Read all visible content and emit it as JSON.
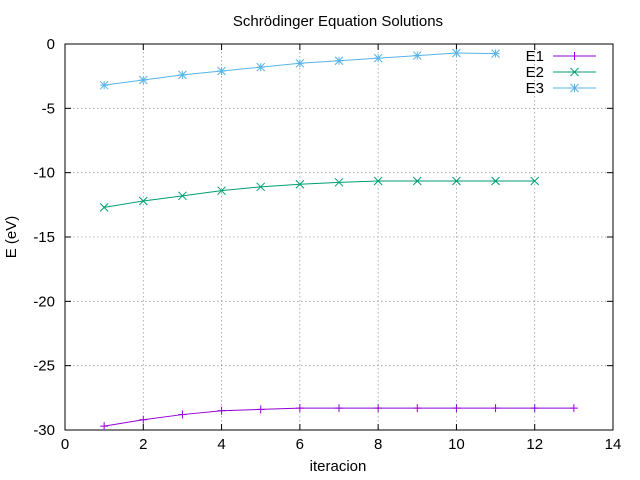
{
  "chart_data": {
    "type": "line",
    "title": "Schrödinger Equation Solutions",
    "xlabel": "iteracion",
    "ylabel": "E (eV)",
    "xlim": [
      0,
      14
    ],
    "ylim": [
      -30,
      0
    ],
    "xticks": [
      0,
      2,
      4,
      6,
      8,
      10,
      12,
      14
    ],
    "yticks": [
      0,
      -5,
      -10,
      -15,
      -20,
      -25,
      -30
    ],
    "grid": true,
    "legend_position": "top-right",
    "series": [
      {
        "name": "E1",
        "color": "#9400d3",
        "marker": "plus",
        "x": [
          1,
          2,
          3,
          4,
          5,
          6,
          7,
          8,
          9,
          10,
          11,
          12,
          13
        ],
        "y": [
          -29.7,
          -29.2,
          -28.8,
          -28.5,
          -28.4,
          -28.3,
          -28.3,
          -28.3,
          -28.3,
          -28.3,
          -28.3,
          -28.3,
          -28.3
        ]
      },
      {
        "name": "E2",
        "color": "#009e73",
        "marker": "cross",
        "x": [
          1,
          2,
          3,
          4,
          5,
          6,
          7,
          8,
          9,
          10,
          11,
          12
        ],
        "y": [
          -12.7,
          -12.2,
          -11.8,
          -11.4,
          -11.1,
          -10.9,
          -10.75,
          -10.65,
          -10.65,
          -10.65,
          -10.65,
          -10.65
        ]
      },
      {
        "name": "E3",
        "color": "#56b4e9",
        "marker": "star",
        "x": [
          1,
          2,
          3,
          4,
          5,
          6,
          7,
          8,
          9,
          10,
          11
        ],
        "y": [
          -3.2,
          -2.8,
          -2.4,
          -2.1,
          -1.8,
          -1.5,
          -1.3,
          -1.1,
          -0.9,
          -0.7,
          -0.75
        ]
      }
    ]
  }
}
